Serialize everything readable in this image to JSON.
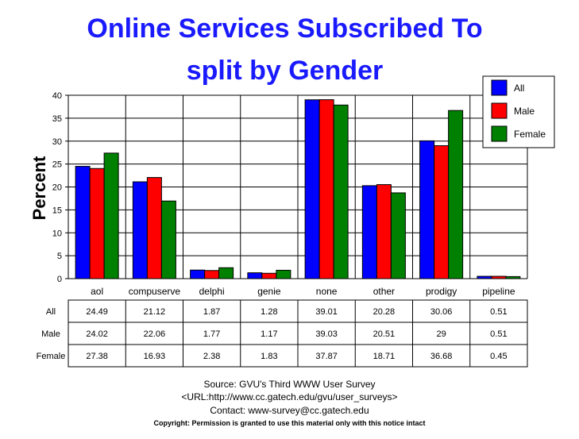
{
  "chart_data": {
    "type": "bar",
    "title": "Online Services Subscribed To",
    "subtitle": "split by Gender",
    "ylabel": "Percent",
    "xlabel": "",
    "ylim": [
      0,
      40
    ],
    "yticks": [
      0,
      5,
      10,
      15,
      20,
      25,
      30,
      35,
      40
    ],
    "grid": true,
    "legend": "top-right",
    "categories": [
      "aol",
      "compuserve",
      "delphi",
      "genie",
      "none",
      "other",
      "prodigy",
      "pipeline"
    ],
    "series": [
      {
        "name": "All",
        "color": "#0000ff",
        "values": [
          24.49,
          21.12,
          1.87,
          1.28,
          39.01,
          20.28,
          30.06,
          0.51
        ],
        "labels": [
          "24.49",
          "21.12",
          "1.87",
          "1.28",
          "39.01",
          "20.28",
          "30.06",
          "0.51"
        ]
      },
      {
        "name": "Male",
        "color": "#ff0000",
        "values": [
          24.02,
          22.06,
          1.77,
          1.17,
          39.03,
          20.51,
          29,
          0.51
        ],
        "labels": [
          "24.02",
          "22.06",
          "1.77",
          "1.17",
          "39.03",
          "20.51",
          "29",
          "0.51"
        ]
      },
      {
        "name": "Female",
        "color": "#008000",
        "values": [
          27.38,
          16.93,
          2.38,
          1.83,
          37.87,
          18.71,
          36.68,
          0.45
        ],
        "labels": [
          "27.38",
          "16.93",
          "2.38",
          "1.83",
          "37.87",
          "18.71",
          "36.68",
          "0.45"
        ]
      }
    ]
  },
  "footer": {
    "source": "Source: GVU's Third WWW User Survey",
    "url": "<URL:http://www.cc.gatech.edu/gvu/user_surveys>",
    "contact": "Contact: www-survey@cc.gatech.edu",
    "copyright": "Copyright: Permission is granted to use this material only with this notice intact"
  }
}
